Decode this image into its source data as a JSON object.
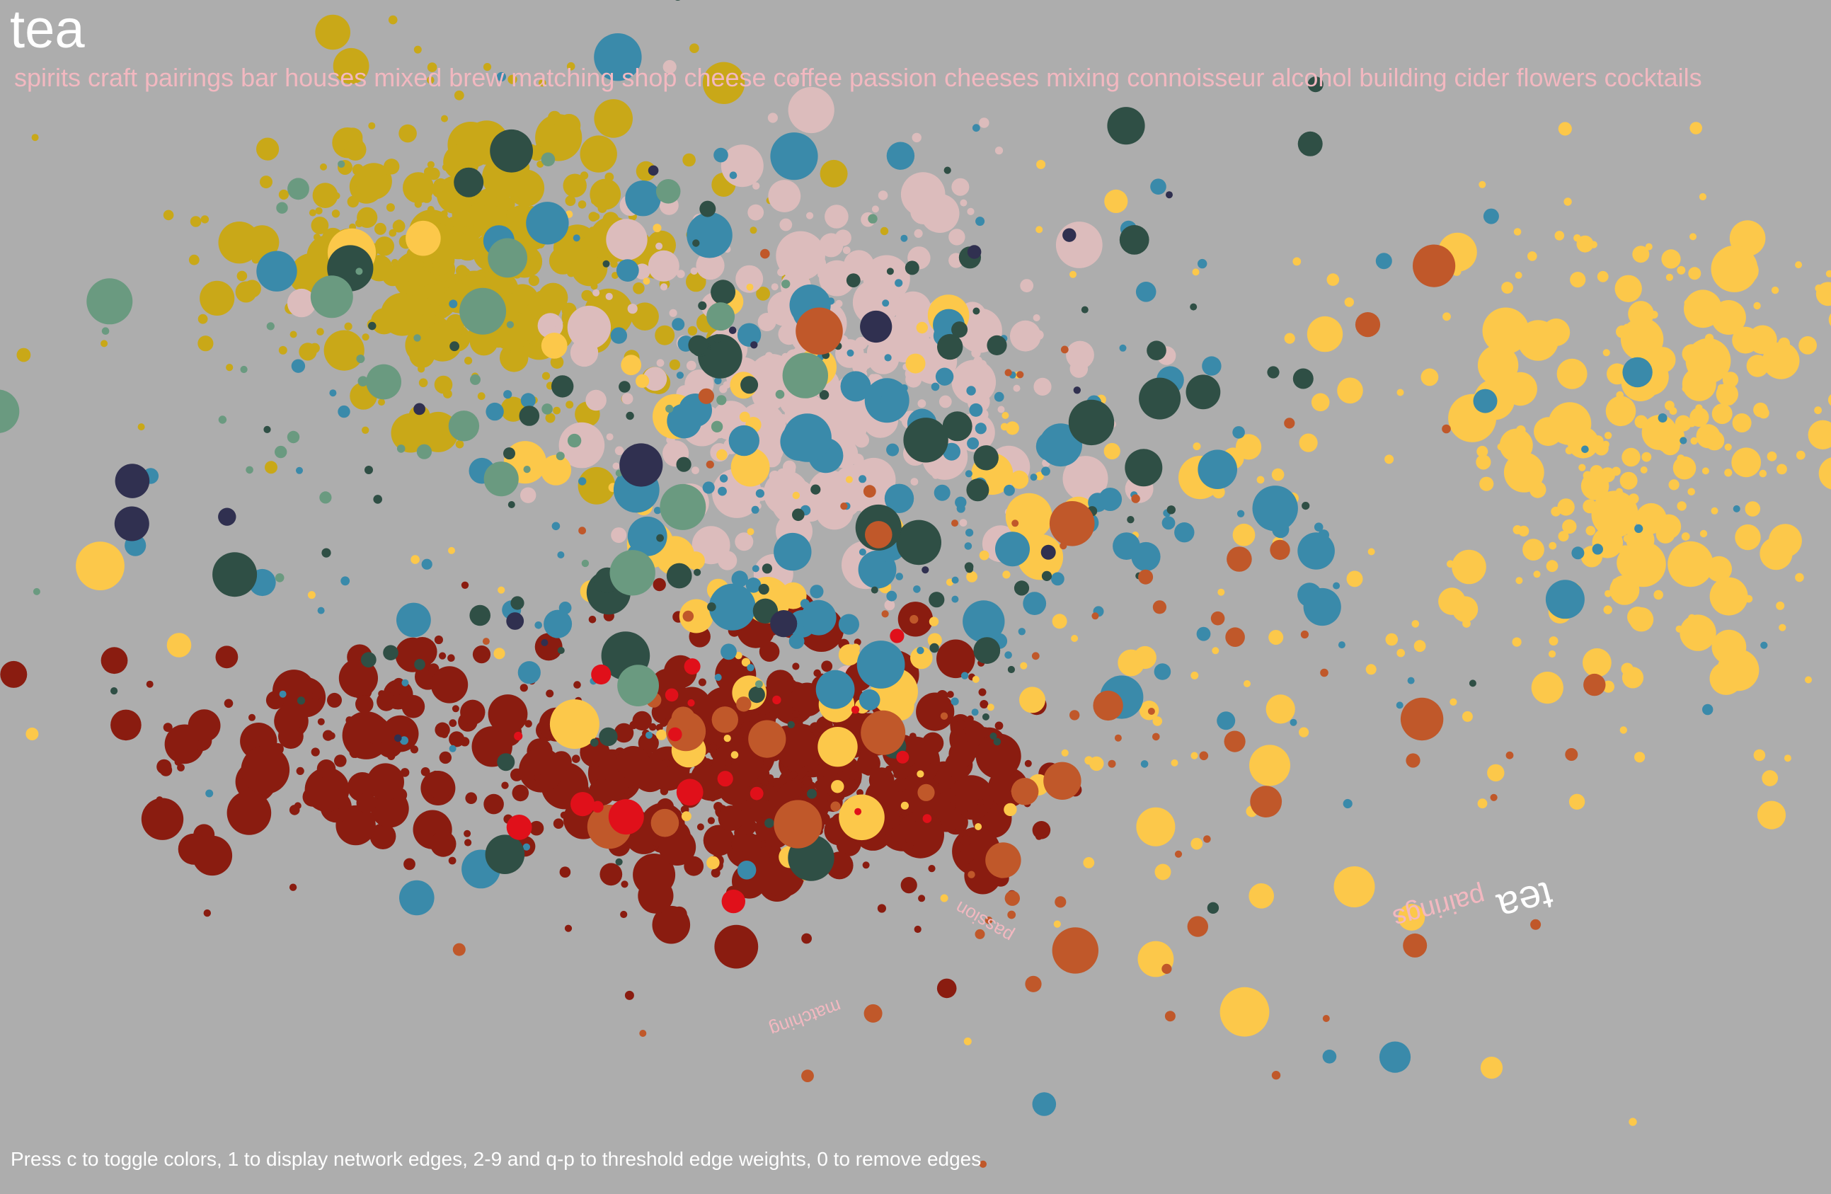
{
  "title": "tea",
  "related_words": [
    "spirits",
    "craft",
    "pairings",
    "bar",
    "houses",
    "mixed",
    "brew",
    "matching",
    "shop",
    "cheese",
    "coffee",
    "passion",
    "cheeses",
    "mixing",
    "connoisseur",
    "alcohol",
    "building",
    "cider",
    "flowers",
    "cocktails"
  ],
  "floating_labels": [
    "pairings",
    "tea",
    "passion",
    "matching"
  ],
  "instructions": "Press c to toggle colors, 1 to display network edges, 2-9 and q-p to threshold edge weights, 0 to remove edges"
}
